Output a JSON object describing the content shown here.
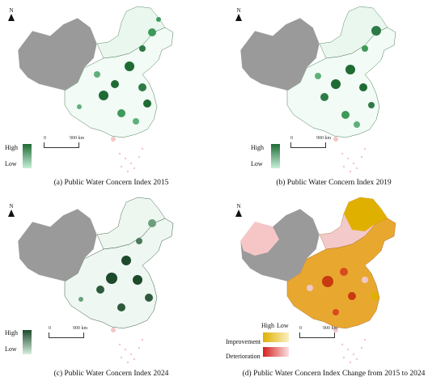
{
  "panels": [
    {
      "caption": "(a) Public Water Concern Index 2015",
      "legend": {
        "high": "High",
        "low": "Low"
      },
      "scale": {
        "start": "0",
        "end": "900 km"
      },
      "north": "N",
      "colors": {
        "high": "#1e6b34",
        "low": "#c7f0d8",
        "nodata": "#9a9a9a"
      }
    },
    {
      "caption": "(b) Public Water Concern Index 2019",
      "legend": {
        "high": "High",
        "low": "Low"
      },
      "scale": {
        "start": "0",
        "end": "900 km"
      },
      "north": "N",
      "colors": {
        "high": "#1e6b34",
        "low": "#c7f0d8",
        "nodata": "#9a9a9a"
      }
    },
    {
      "caption": "(c) Public Water Concern Index 2024",
      "legend": {
        "high": "High",
        "low": "Low"
      },
      "scale": {
        "start": "0",
        "end": "900 km"
      },
      "north": "N",
      "colors": {
        "high": "#1e4a2c",
        "low": "#d8efe0",
        "nodata": "#9a9a9a"
      }
    },
    {
      "caption": "(d) Public Water Concern Index Change from 2015 to 2024",
      "legend": {
        "high": "High",
        "low": "Low",
        "improvement": "Improvement",
        "deterioration": "Deterioration"
      },
      "scale": {
        "start": "0",
        "end": "900 km"
      },
      "north": "N",
      "colors": {
        "improvement": "#e0b000",
        "deterioration": "#d42020",
        "nodata": "#9a9a9a",
        "light": "#f6c6c6"
      }
    }
  ]
}
